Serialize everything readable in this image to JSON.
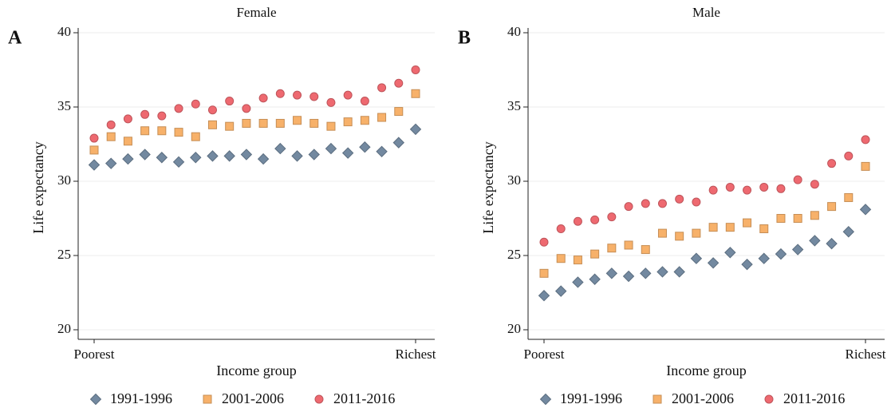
{
  "chart_data": [
    {
      "type": "scatter",
      "label": "A",
      "title": "Female",
      "xlabel": "Income group",
      "ylabel": "Life expectancy",
      "categories": [
        "Poorest",
        null,
        null,
        null,
        null,
        null,
        null,
        null,
        null,
        null,
        null,
        null,
        null,
        null,
        null,
        null,
        null,
        null,
        null,
        "Richest"
      ],
      "ylim": [
        20,
        40
      ],
      "yticks": [
        20,
        25,
        30,
        35,
        40
      ],
      "grid": true,
      "series": [
        {
          "name": "1991-1996",
          "marker": "diamond",
          "color": "#7389a0",
          "values": [
            31.1,
            31.2,
            31.5,
            31.8,
            31.6,
            31.3,
            31.6,
            31.7,
            31.7,
            31.8,
            31.5,
            32.2,
            31.7,
            31.8,
            32.2,
            31.9,
            32.3,
            32.0,
            32.6,
            33.5
          ]
        },
        {
          "name": "2001-2006",
          "marker": "square",
          "color": "#f7b16a",
          "values": [
            32.1,
            33.0,
            32.7,
            33.4,
            33.4,
            33.3,
            33.0,
            33.8,
            33.7,
            33.9,
            33.9,
            33.9,
            34.1,
            33.9,
            33.7,
            34.0,
            34.1,
            34.3,
            34.7,
            35.9
          ]
        },
        {
          "name": "2011-2016",
          "marker": "circle",
          "color": "#ee6970",
          "values": [
            32.9,
            33.8,
            34.2,
            34.5,
            34.4,
            34.9,
            35.2,
            34.8,
            35.4,
            34.9,
            35.6,
            35.9,
            35.8,
            35.7,
            35.3,
            35.8,
            35.4,
            36.3,
            36.6,
            37.5
          ]
        }
      ]
    },
    {
      "type": "scatter",
      "label": "B",
      "title": "Male",
      "xlabel": "Income group",
      "ylabel": "Life expectancy",
      "categories": [
        "Poorest",
        null,
        null,
        null,
        null,
        null,
        null,
        null,
        null,
        null,
        null,
        null,
        null,
        null,
        null,
        null,
        null,
        null,
        null,
        "Richest"
      ],
      "ylim": [
        20,
        40
      ],
      "yticks": [
        20,
        25,
        30,
        35,
        40
      ],
      "grid": true,
      "series": [
        {
          "name": "1991-1996",
          "marker": "diamond",
          "color": "#7389a0",
          "values": [
            22.3,
            22.6,
            23.2,
            23.4,
            23.8,
            23.6,
            23.8,
            23.9,
            23.9,
            24.8,
            24.5,
            25.2,
            24.4,
            24.8,
            25.1,
            25.4,
            26.0,
            25.8,
            26.6,
            28.1
          ]
        },
        {
          "name": "2001-2006",
          "marker": "square",
          "color": "#f7b16a",
          "values": [
            23.8,
            24.8,
            24.7,
            25.1,
            25.5,
            25.7,
            25.4,
            26.5,
            26.3,
            26.5,
            26.9,
            26.9,
            27.2,
            26.8,
            27.5,
            27.5,
            27.7,
            28.3,
            28.9,
            31.0
          ]
        },
        {
          "name": "2011-2016",
          "marker": "circle",
          "color": "#ee6970",
          "values": [
            25.9,
            26.8,
            27.3,
            27.4,
            27.6,
            28.3,
            28.5,
            28.5,
            28.8,
            28.6,
            29.4,
            29.6,
            29.4,
            29.6,
            29.5,
            30.1,
            29.8,
            31.2,
            31.7,
            32.8
          ]
        }
      ]
    }
  ]
}
